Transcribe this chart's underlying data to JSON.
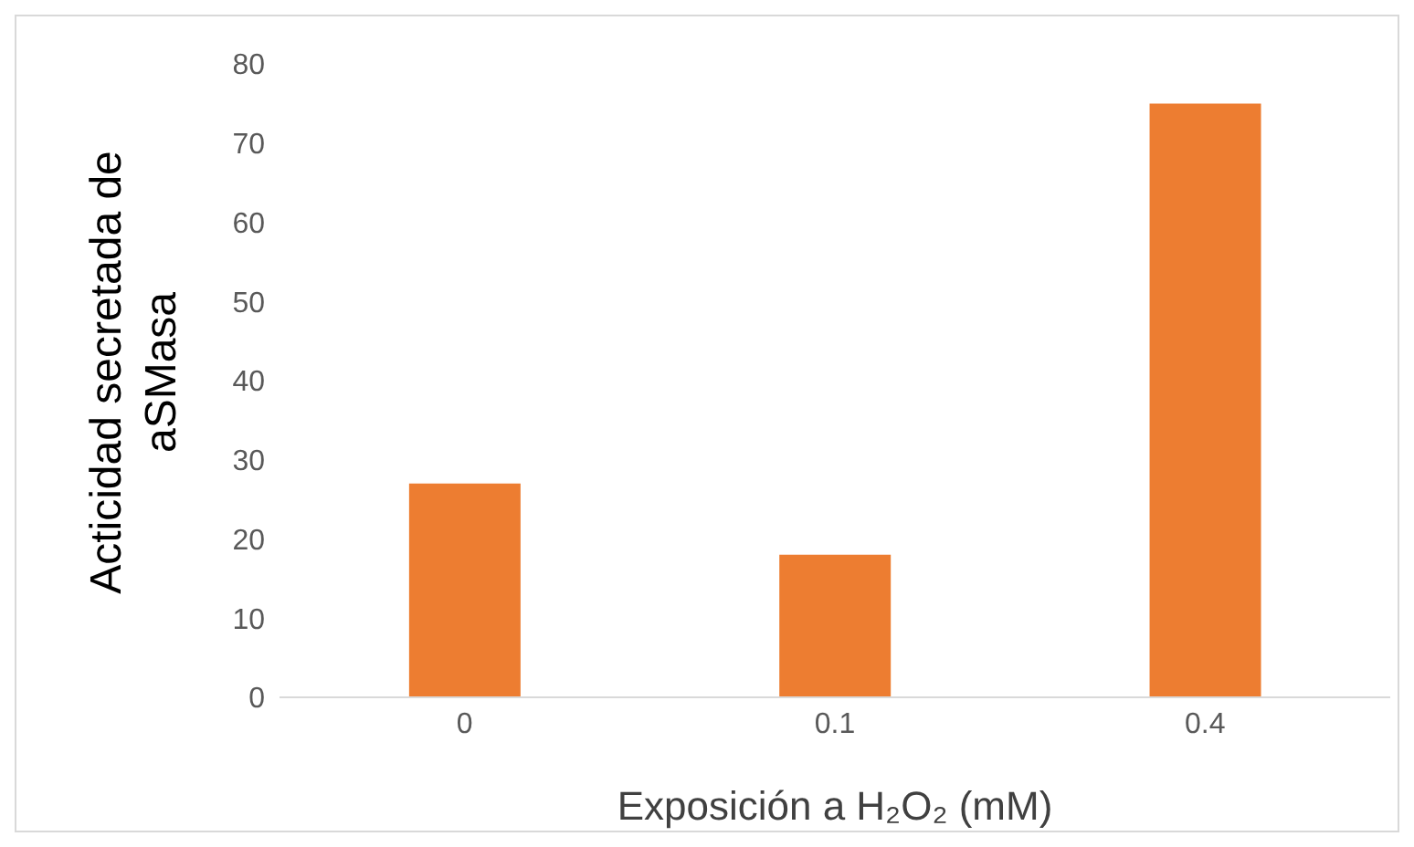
{
  "chart_data": {
    "type": "bar",
    "xlabel": "Exposición a H₂O₂ (mM)",
    "ylabel": "Acticidad secretada de aSMasa",
    "categories": [
      "0",
      "0.1",
      "0.4"
    ],
    "values": [
      27,
      18,
      75
    ],
    "color": "#ed7d31",
    "ylim": [
      0,
      80
    ],
    "yticks": [
      0,
      10,
      20,
      30,
      40,
      50,
      60,
      70,
      80
    ],
    "grid": false,
    "legend": false
  }
}
